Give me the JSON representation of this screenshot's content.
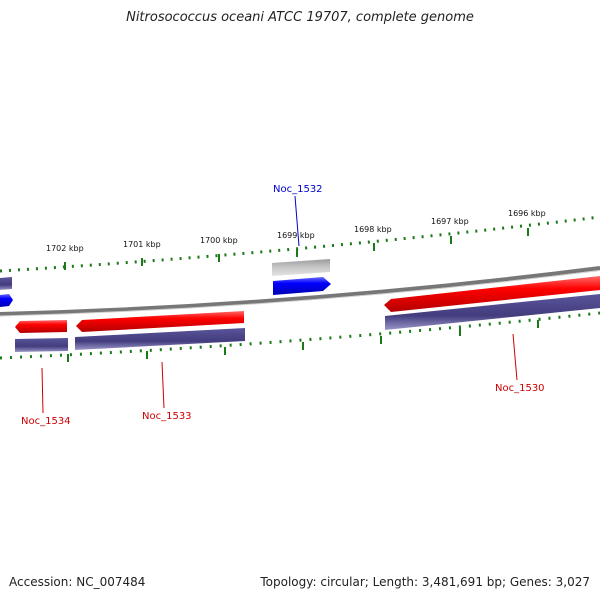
{
  "title": "Nitrosococcus oceani ATCC 19707, complete genome",
  "footer": {
    "accession": "Accession: NC_007484",
    "topology": "Topology: circular; Length: 3,481,691 bp; Genes: 3,027"
  },
  "colors": {
    "forward_cds": "#ee0000",
    "reverse_cds": "#0000ee",
    "gene_track": "#4a4585",
    "misc_feature": "#b8b8b8",
    "backbone": "#808080",
    "ticks": "#1a7a1a",
    "label_red": "#cc0000",
    "label_blue": "#0000cc"
  },
  "scale": {
    "tick_labels": [
      "1702 kbp",
      "1701 kbp",
      "1700 kbp",
      "1699 kbp",
      "1698 kbp",
      "1697 kbp",
      "1696 kbp"
    ]
  },
  "genes": [
    {
      "name": "Noc_1534",
      "strand": "forward"
    },
    {
      "name": "Noc_1533",
      "strand": "forward"
    },
    {
      "name": "Noc_1532",
      "strand": "reverse"
    },
    {
      "name": "Noc_1530",
      "strand": "forward"
    }
  ]
}
